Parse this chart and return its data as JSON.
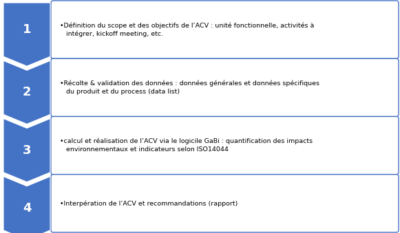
{
  "steps": [
    {
      "number": "1",
      "text": "•Définition du scope et des objectifs de l’ACV : unité fonctionnelle, activités à\n   intégrer, kickoff meeting, etc."
    },
    {
      "number": "2",
      "text": "•Récolte & validation des données : données générales et données spécifiques\n   du produit et du process (data list)"
    },
    {
      "number": "3",
      "text": "•calcul et réalisation de l’ACV via le logicile GaBi : quantification des impacts\n   environnementaux et indicateurs selon ISO14044"
    },
    {
      "number": "4",
      "text": "•Interpération de l’ACV et recommandations (rapport)"
    }
  ],
  "arrow_color": "#4472C4",
  "box_border_color": "#4472C4",
  "box_fill_color": "#FFFFFF",
  "text_color": "#000000",
  "number_color": "#FFFFFF",
  "background_color": "#FFFFFF",
  "figsize": [
    5.81,
    3.39
  ],
  "dpi": 100
}
